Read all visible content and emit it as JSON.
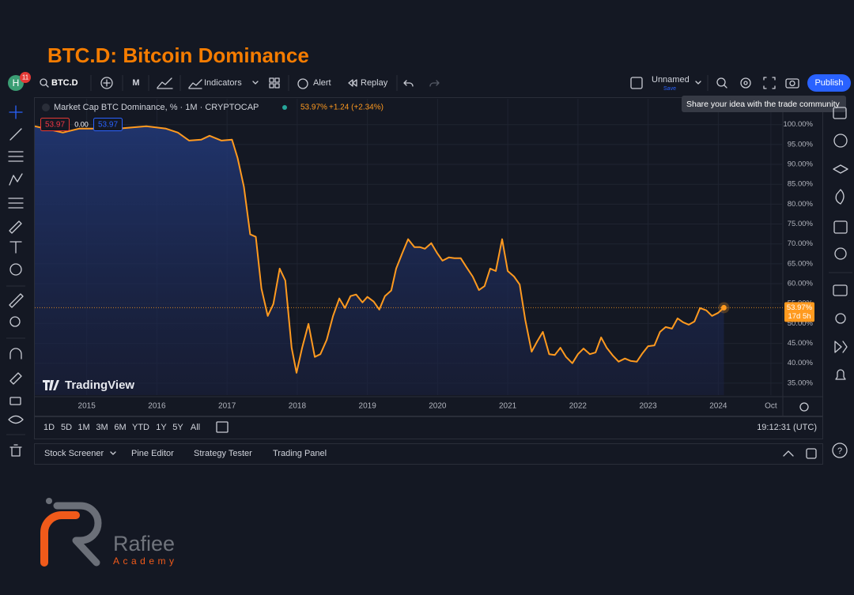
{
  "header": {
    "title": "BTC.D: Bitcoin Dominance"
  },
  "toolbar": {
    "avatar": "H",
    "badge": "11",
    "symbol": "BTC.D",
    "interval": "M",
    "indicators": "Indicators",
    "alert": "Alert",
    "replay": "Replay",
    "layout_name": "Unnamed",
    "save": "Save",
    "publish": "Publish",
    "tooltip": "Share your idea with the trade community"
  },
  "chart_data": {
    "type": "area",
    "series": [
      {
        "name": "Market Cap BTC Dominance, % · 1M · CRYPTOCAP",
        "color": "#ff9a1f",
        "values": [
          99.6,
          98.0,
          99.0,
          99.0,
          99.6,
          99.0,
          98.0,
          96.0,
          96.2,
          97.2,
          96.0,
          96.2,
          91.6,
          84.3,
          72.4,
          71.8,
          58.8,
          51.9,
          54.9,
          63.8,
          60.8,
          43.9,
          37.6,
          43.9,
          49.9,
          41.6,
          42.3,
          45.9,
          51.9,
          56.3,
          53.9,
          56.9,
          57.3,
          55.3,
          56.7,
          55.5,
          53.5,
          56.9,
          58.3,
          63.8,
          67.8,
          71.2,
          69.2,
          69.2,
          68.8,
          70.2,
          67.8,
          65.8,
          66.6,
          66.4,
          66.4,
          64.2,
          61.8,
          58.4,
          59.4,
          63.8,
          63.2,
          71.2,
          63.2,
          61.8,
          59.8,
          50.9,
          42.9,
          45.5,
          47.9,
          42.3,
          42.1,
          43.9,
          41.6,
          40.0,
          42.3,
          43.7,
          42.3,
          42.7,
          46.5,
          43.9,
          41.9,
          40.4,
          41.2,
          40.6,
          40.4,
          42.5,
          44.3,
          44.5,
          47.9,
          49.1,
          48.7,
          51.3,
          50.3,
          49.7,
          50.5,
          53.9,
          53.3,
          51.9,
          52.7,
          53.97
        ]
      }
    ],
    "x": [
      2014.26,
      2014.66,
      2014.89,
      2015.45,
      2015.85,
      2016.13,
      2016.3,
      2016.46,
      2016.63,
      2016.75,
      2016.92,
      2017.07,
      2017.15,
      2017.24,
      2017.33,
      2017.41,
      2017.49,
      2017.58,
      2017.66,
      2017.75,
      2017.83,
      2017.92,
      2017.99,
      2018.07,
      2018.16,
      2018.25,
      2018.33,
      2018.42,
      2018.51,
      2018.6,
      2018.68,
      2018.76,
      2018.84,
      2018.93,
      2019.0,
      2019.09,
      2019.17,
      2019.25,
      2019.34,
      2019.41,
      2019.5,
      2019.58,
      2019.67,
      2019.75,
      2019.82,
      2019.91,
      2019.99,
      2020.07,
      2020.16,
      2020.24,
      2020.33,
      2020.41,
      2020.5,
      2020.59,
      2020.67,
      2020.75,
      2020.83,
      2020.92,
      2021.0,
      2021.09,
      2021.17,
      2021.25,
      2021.34,
      2021.42,
      2021.5,
      2021.59,
      2021.67,
      2021.75,
      2021.83,
      2021.92,
      2022.0,
      2022.08,
      2022.17,
      2022.25,
      2022.33,
      2022.41,
      2022.5,
      2022.58,
      2022.67,
      2022.75,
      2022.84,
      2022.92,
      2023.0,
      2023.09,
      2023.17,
      2023.25,
      2023.34,
      2023.42,
      2023.5,
      2023.58,
      2023.66,
      2023.74,
      2023.83,
      2023.91,
      2024.0,
      2024.08
    ],
    "xlim": [
      2014.26,
      2024.92
    ],
    "xticks": [
      2015,
      2016,
      2017,
      2018,
      2019,
      2020,
      2021,
      2022,
      2023,
      2024,
      {
        "value": 2024.75,
        "label": "Oct"
      }
    ],
    "ylim": [
      32,
      106.5
    ],
    "yticks": [
      {
        "value": 35,
        "label": "35.00%"
      },
      {
        "value": 40,
        "label": "40.00%"
      },
      {
        "value": 45,
        "label": "45.00%"
      },
      {
        "value": 50,
        "label": "50.00%"
      },
      {
        "value": 55,
        "label": "55.00%"
      },
      {
        "value": 60,
        "label": "60.00%"
      },
      {
        "value": 65,
        "label": "65.00%"
      },
      {
        "value": 70,
        "label": "70.00%"
      },
      {
        "value": 75,
        "label": "75.00%"
      },
      {
        "value": 80,
        "label": "80.00%"
      },
      {
        "value": 85,
        "label": "85.00%"
      },
      {
        "value": 90,
        "label": "90.00%"
      },
      {
        "value": 95,
        "label": "95.00%"
      },
      {
        "value": 100,
        "label": "100.00%"
      }
    ],
    "grid": true,
    "legend_value": "53.97%",
    "legend_change": "+1.24 (+2.34%)",
    "order_buttons": [
      "53.97",
      "0.00",
      "53.97"
    ],
    "price_tag": "53.97%",
    "countdown": "17d 5h"
  },
  "watermark": "TradingView",
  "range_bar": {
    "ranges": [
      "1D",
      "5D",
      "1M",
      "3M",
      "6M",
      "YTD",
      "1Y",
      "5Y",
      "All"
    ],
    "clock": "19:12:31 (UTC)"
  },
  "bottom_panel": {
    "tabs": [
      "Stock Screener",
      "Pine Editor",
      "Strategy Tester",
      "Trading Panel"
    ]
  },
  "logo": {
    "name": "Rafiee",
    "sub": "Academy"
  }
}
